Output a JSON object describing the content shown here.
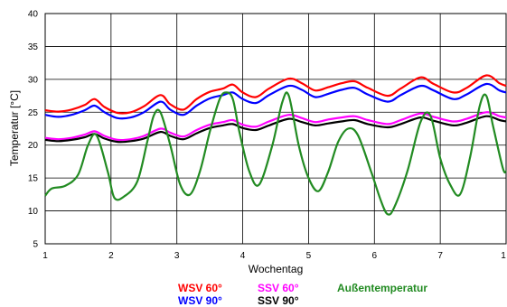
{
  "chart_data": {
    "type": "line",
    "title": "",
    "xlabel": "Wochentag",
    "ylabel": "Temperatur [°C]",
    "xlim": [
      1,
      8
    ],
    "ylim": [
      5,
      40
    ],
    "x_ticks": [
      1,
      2,
      3,
      4,
      5,
      6,
      7,
      8
    ],
    "x_tick_labels": [
      "1",
      "2",
      "3",
      "4",
      "5",
      "6",
      "7",
      "1"
    ],
    "y_ticks": [
      5,
      10,
      15,
      20,
      25,
      30,
      35,
      40
    ],
    "y_tick_labels": [
      "5",
      "10",
      "15",
      "20",
      "25",
      "30",
      "35",
      "40"
    ],
    "grid": true,
    "legend_position": "bottom",
    "series": [
      {
        "name": "WSV 60°",
        "color": "#ff0000",
        "x": [
          1.0,
          1.2,
          1.4,
          1.6,
          1.75,
          1.9,
          2.1,
          2.3,
          2.5,
          2.75,
          2.9,
          3.1,
          3.3,
          3.5,
          3.7,
          3.85,
          4.0,
          4.2,
          4.4,
          4.7,
          4.9,
          5.1,
          5.3,
          5.5,
          5.7,
          5.9,
          6.2,
          6.4,
          6.7,
          6.9,
          7.2,
          7.4,
          7.7,
          7.9,
          8.0
        ],
        "values": [
          25.3,
          25.1,
          25.4,
          26.1,
          27.0,
          25.8,
          24.9,
          25.0,
          25.9,
          27.6,
          26.2,
          25.4,
          27.0,
          28.1,
          28.6,
          29.2,
          28.0,
          27.3,
          28.6,
          30.1,
          29.4,
          28.3,
          28.8,
          29.4,
          29.7,
          28.7,
          27.5,
          28.6,
          30.3,
          29.3,
          28.0,
          28.7,
          30.6,
          29.4,
          29.0
        ]
      },
      {
        "name": "WSV 90°",
        "color": "#0000ff",
        "x": [
          1.0,
          1.2,
          1.4,
          1.6,
          1.75,
          1.9,
          2.1,
          2.3,
          2.5,
          2.75,
          2.9,
          3.1,
          3.3,
          3.5,
          3.7,
          3.85,
          4.0,
          4.2,
          4.4,
          4.7,
          4.9,
          5.1,
          5.3,
          5.5,
          5.7,
          5.9,
          6.2,
          6.4,
          6.7,
          6.9,
          7.2,
          7.4,
          7.7,
          7.9,
          8.0
        ],
        "values": [
          24.6,
          24.3,
          24.6,
          25.3,
          26.0,
          25.0,
          24.1,
          24.2,
          25.0,
          26.6,
          25.4,
          24.6,
          26.0,
          27.1,
          27.6,
          28.0,
          27.0,
          26.4,
          27.6,
          29.0,
          28.4,
          27.3,
          27.8,
          28.4,
          28.7,
          27.7,
          26.6,
          27.6,
          29.0,
          28.3,
          27.0,
          27.7,
          29.3,
          28.3,
          28.0
        ]
      },
      {
        "name": "SSV 60°",
        "color": "#ff00ff",
        "x": [
          1.0,
          1.2,
          1.4,
          1.6,
          1.75,
          1.9,
          2.1,
          2.3,
          2.5,
          2.75,
          2.9,
          3.1,
          3.3,
          3.5,
          3.7,
          3.85,
          4.0,
          4.2,
          4.4,
          4.7,
          4.9,
          5.1,
          5.3,
          5.5,
          5.7,
          5.9,
          6.2,
          6.4,
          6.7,
          6.9,
          7.2,
          7.4,
          7.7,
          7.9,
          8.0
        ],
        "values": [
          21.1,
          20.9,
          21.1,
          21.6,
          22.1,
          21.4,
          20.8,
          20.9,
          21.4,
          22.5,
          21.9,
          21.3,
          22.3,
          23.1,
          23.5,
          23.8,
          23.1,
          22.8,
          23.6,
          24.6,
          24.1,
          23.5,
          23.9,
          24.2,
          24.4,
          23.8,
          23.2,
          23.8,
          24.8,
          24.3,
          23.6,
          24.0,
          25.0,
          24.4,
          24.2
        ]
      },
      {
        "name": "SSV 90°",
        "color": "#000000",
        "x": [
          1.0,
          1.2,
          1.4,
          1.6,
          1.75,
          1.9,
          2.1,
          2.3,
          2.5,
          2.75,
          2.9,
          3.1,
          3.3,
          3.5,
          3.7,
          3.85,
          4.0,
          4.2,
          4.4,
          4.7,
          4.9,
          5.1,
          5.3,
          5.5,
          5.7,
          5.9,
          6.2,
          6.4,
          6.7,
          6.9,
          7.2,
          7.4,
          7.7,
          7.9,
          8.0
        ],
        "values": [
          20.8,
          20.6,
          20.8,
          21.2,
          21.7,
          21.0,
          20.5,
          20.6,
          21.0,
          22.0,
          21.4,
          20.9,
          21.8,
          22.6,
          23.0,
          23.2,
          22.6,
          22.3,
          23.0,
          24.0,
          23.5,
          23.0,
          23.3,
          23.6,
          23.8,
          23.2,
          22.7,
          23.2,
          24.2,
          23.7,
          23.0,
          23.4,
          24.4,
          23.8,
          23.6
        ]
      },
      {
        "name": "Außentemperatur",
        "color": "#228b22",
        "x": [
          1.0,
          1.1,
          1.3,
          1.5,
          1.65,
          1.78,
          1.95,
          2.05,
          2.2,
          2.4,
          2.55,
          2.65,
          2.75,
          2.9,
          3.05,
          3.2,
          3.35,
          3.5,
          3.65,
          3.75,
          3.85,
          3.95,
          4.1,
          4.25,
          4.45,
          4.6,
          4.7,
          4.85,
          5.0,
          5.15,
          5.3,
          5.45,
          5.6,
          5.75,
          5.95,
          6.1,
          6.2,
          6.3,
          6.5,
          6.7,
          6.85,
          7.0,
          7.15,
          7.3,
          7.45,
          7.6,
          7.7,
          7.8,
          7.95,
          8.0
        ],
        "values": [
          12.3,
          13.4,
          13.8,
          15.5,
          20.0,
          21.5,
          16.0,
          12.0,
          12.2,
          14.5,
          20.5,
          24.5,
          25.0,
          20.0,
          14.0,
          12.5,
          16.0,
          22.0,
          27.0,
          28.0,
          27.0,
          22.0,
          16.0,
          14.0,
          20.0,
          26.5,
          27.5,
          20.0,
          15.0,
          13.0,
          16.0,
          20.5,
          22.5,
          21.5,
          16.0,
          11.5,
          9.5,
          10.5,
          16.0,
          23.5,
          24.5,
          18.0,
          14.0,
          12.5,
          18.0,
          26.0,
          27.5,
          23.0,
          16.5,
          16.0
        ]
      }
    ]
  },
  "legend": [
    {
      "label": "WSV 60°",
      "color": "#ff0000"
    },
    {
      "label": "SSV 60°",
      "color": "#ff00ff"
    },
    {
      "label": "Außentemperatur",
      "color": "#228b22"
    },
    {
      "label": "WSV 90°",
      "color": "#0000ff"
    },
    {
      "label": "SSV 90°",
      "color": "#000000"
    }
  ]
}
